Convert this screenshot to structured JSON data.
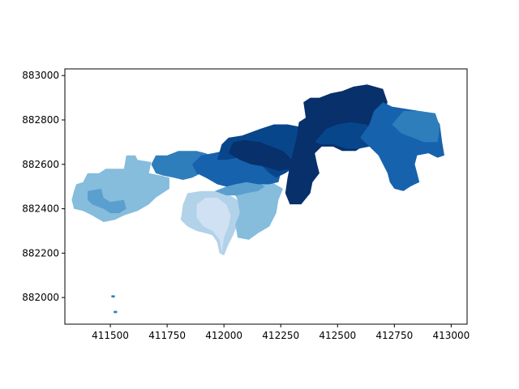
{
  "colors": {
    "background": "#ffffff",
    "frame": "#000000",
    "tick_label": "#000000",
    "choropleth_palette": "Blues",
    "shades": {
      "darkest": "#08306b",
      "dark": "#08468c",
      "dark_mid": "#1762ad",
      "mid": "#2f7ebc",
      "mid_light": "#5b9fcf",
      "light": "#86bcdc",
      "lighter": "#b1d2e8",
      "lightest": "#cfe1f2"
    }
  },
  "chart_data": {
    "type": "choropleth_map",
    "title": "",
    "xlabel": "",
    "ylabel": "",
    "xlim": [
      411300,
      413070
    ],
    "ylim": [
      881880,
      883030
    ],
    "grid": false,
    "legend": "none",
    "xticks": {
      "values": [
        411500,
        411750,
        412000,
        412250,
        412500,
        412750,
        413000
      ],
      "labels": [
        "411500",
        "411750",
        "412000",
        "412250",
        "412500",
        "412750",
        "413000"
      ]
    },
    "yticks": {
      "values": [
        882000,
        882200,
        882400,
        882600,
        882800,
        883000
      ],
      "labels": [
        "882000",
        "882200",
        "882400",
        "882600",
        "882800",
        "883000"
      ]
    },
    "regions": [
      {
        "name": "west_light_blue",
        "shade": "light",
        "polygon": [
          [
            411340,
            882480
          ],
          [
            411350,
            882510
          ],
          [
            411380,
            882520
          ],
          [
            411400,
            882560
          ],
          [
            411450,
            882560
          ],
          [
            411480,
            882580
          ],
          [
            411560,
            882580
          ],
          [
            411570,
            882640
          ],
          [
            411610,
            882640
          ],
          [
            411620,
            882620
          ],
          [
            411680,
            882610
          ],
          [
            411670,
            882560
          ],
          [
            411720,
            882550
          ],
          [
            411760,
            882540
          ],
          [
            411760,
            882490
          ],
          [
            411700,
            882450
          ],
          [
            411670,
            882420
          ],
          [
            411620,
            882390
          ],
          [
            411560,
            882370
          ],
          [
            411520,
            882350
          ],
          [
            411470,
            882340
          ],
          [
            411420,
            882370
          ],
          [
            411380,
            882390
          ],
          [
            411340,
            882400
          ],
          [
            411330,
            882440
          ]
        ]
      },
      {
        "name": "west_mid_light_patch",
        "shade": "mid_light",
        "polygon": [
          [
            411400,
            882480
          ],
          [
            411460,
            882490
          ],
          [
            411470,
            882450
          ],
          [
            411500,
            882430
          ],
          [
            411560,
            882440
          ],
          [
            411570,
            882400
          ],
          [
            411540,
            882380
          ],
          [
            411500,
            882380
          ],
          [
            411470,
            882400
          ],
          [
            411420,
            882420
          ],
          [
            411400,
            882440
          ]
        ]
      },
      {
        "name": "central_mid_band",
        "shade": "mid",
        "polygon": [
          [
            411680,
            882600
          ],
          [
            411700,
            882640
          ],
          [
            411750,
            882640
          ],
          [
            411800,
            882660
          ],
          [
            411880,
            882660
          ],
          [
            411920,
            882650
          ],
          [
            411960,
            882630
          ],
          [
            411980,
            882590
          ],
          [
            411940,
            882570
          ],
          [
            411900,
            882560
          ],
          [
            411860,
            882540
          ],
          [
            411820,
            882530
          ],
          [
            411780,
            882540
          ],
          [
            411730,
            882550
          ],
          [
            411700,
            882560
          ]
        ]
      },
      {
        "name": "south_lighter_lobe",
        "shade": "lighter",
        "polygon": [
          [
            411820,
            882420
          ],
          [
            411840,
            882470
          ],
          [
            411900,
            882480
          ],
          [
            411960,
            882480
          ],
          [
            412010,
            882470
          ],
          [
            412060,
            882440
          ],
          [
            412080,
            882390
          ],
          [
            412060,
            882330
          ],
          [
            412040,
            882280
          ],
          [
            412020,
            882240
          ],
          [
            412000,
            882190
          ],
          [
            411980,
            882200
          ],
          [
            411970,
            882250
          ],
          [
            411950,
            882280
          ],
          [
            411920,
            882290
          ],
          [
            411880,
            882300
          ],
          [
            411840,
            882320
          ],
          [
            411810,
            882350
          ]
        ]
      },
      {
        "name": "south_lightest_core",
        "shade": "lightest",
        "polygon": [
          [
            411880,
            882420
          ],
          [
            411920,
            882450
          ],
          [
            411970,
            882450
          ],
          [
            412010,
            882420
          ],
          [
            412030,
            882370
          ],
          [
            412020,
            882320
          ],
          [
            412000,
            882270
          ],
          [
            411990,
            882200
          ],
          [
            411980,
            882260
          ],
          [
            411950,
            882300
          ],
          [
            411910,
            882320
          ],
          [
            411880,
            882360
          ]
        ]
      },
      {
        "name": "south_east_light",
        "shade": "light",
        "polygon": [
          [
            412040,
            882480
          ],
          [
            412090,
            882500
          ],
          [
            412150,
            882510
          ],
          [
            412210,
            882520
          ],
          [
            412260,
            882490
          ],
          [
            412240,
            882440
          ],
          [
            412230,
            882380
          ],
          [
            412200,
            882320
          ],
          [
            412150,
            882290
          ],
          [
            412110,
            882260
          ],
          [
            412060,
            882270
          ],
          [
            412050,
            882330
          ],
          [
            412070,
            882380
          ],
          [
            412060,
            882440
          ]
        ]
      },
      {
        "name": "central_mid_light",
        "shade": "mid_light",
        "polygon": [
          [
            411960,
            882480
          ],
          [
            412010,
            882500
          ],
          [
            412050,
            882520
          ],
          [
            412100,
            882530
          ],
          [
            412150,
            882520
          ],
          [
            412180,
            882500
          ],
          [
            412150,
            882480
          ],
          [
            412100,
            882470
          ],
          [
            412060,
            882460
          ],
          [
            412010,
            882460
          ]
        ]
      },
      {
        "name": "central_dark_mid",
        "shade": "dark_mid",
        "polygon": [
          [
            411860,
            882600
          ],
          [
            411900,
            882640
          ],
          [
            411950,
            882650
          ],
          [
            412000,
            882660
          ],
          [
            412060,
            882670
          ],
          [
            412120,
            882660
          ],
          [
            412180,
            882640
          ],
          [
            412220,
            882600
          ],
          [
            412250,
            882560
          ],
          [
            412240,
            882520
          ],
          [
            412200,
            882510
          ],
          [
            412150,
            882510
          ],
          [
            412100,
            882520
          ],
          [
            412050,
            882510
          ],
          [
            412010,
            882500
          ],
          [
            411970,
            882510
          ],
          [
            411920,
            882540
          ],
          [
            411880,
            882560
          ]
        ]
      },
      {
        "name": "north_central_dark",
        "shade": "dark",
        "polygon": [
          [
            411970,
            882620
          ],
          [
            411990,
            882690
          ],
          [
            412020,
            882720
          ],
          [
            412080,
            882730
          ],
          [
            412160,
            882760
          ],
          [
            412220,
            882780
          ],
          [
            412280,
            882780
          ],
          [
            412330,
            882770
          ],
          [
            412360,
            882730
          ],
          [
            412350,
            882680
          ],
          [
            412340,
            882620
          ],
          [
            412300,
            882580
          ],
          [
            412270,
            882560
          ],
          [
            412230,
            882540
          ],
          [
            412200,
            882560
          ],
          [
            412160,
            882600
          ],
          [
            412120,
            882620
          ],
          [
            412060,
            882630
          ],
          [
            412010,
            882620
          ]
        ]
      },
      {
        "name": "north_core_darkest",
        "shade": "darkest",
        "polygon": [
          [
            412020,
            882650
          ],
          [
            412040,
            882700
          ],
          [
            412090,
            882710
          ],
          [
            412160,
            882700
          ],
          [
            412210,
            882680
          ],
          [
            412260,
            882660
          ],
          [
            412300,
            882620
          ],
          [
            412290,
            882580
          ],
          [
            412240,
            882570
          ],
          [
            412180,
            882590
          ],
          [
            412120,
            882600
          ],
          [
            412070,
            882620
          ]
        ]
      },
      {
        "name": "east_main_darkest",
        "shade": "darkest",
        "polygon": [
          [
            412300,
            882640
          ],
          [
            412320,
            882720
          ],
          [
            412330,
            882790
          ],
          [
            412360,
            882810
          ],
          [
            412350,
            882880
          ],
          [
            412380,
            882900
          ],
          [
            412420,
            882900
          ],
          [
            412470,
            882920
          ],
          [
            412520,
            882930
          ],
          [
            412570,
            882950
          ],
          [
            412630,
            882960
          ],
          [
            412700,
            882940
          ],
          [
            412720,
            882880
          ],
          [
            412700,
            882820
          ],
          [
            412680,
            882760
          ],
          [
            412640,
            882700
          ],
          [
            412580,
            882660
          ],
          [
            412520,
            882660
          ],
          [
            412480,
            882680
          ],
          [
            412430,
            882680
          ],
          [
            412400,
            882650
          ],
          [
            412410,
            882600
          ],
          [
            412420,
            882560
          ],
          [
            412390,
            882520
          ],
          [
            412380,
            882470
          ],
          [
            412340,
            882420
          ],
          [
            412290,
            882420
          ],
          [
            412270,
            882470
          ],
          [
            412280,
            882540
          ]
        ]
      },
      {
        "name": "east_main_dark",
        "shade": "dark",
        "polygon": [
          [
            412400,
            882700
          ],
          [
            412450,
            882760
          ],
          [
            412500,
            882780
          ],
          [
            412560,
            882790
          ],
          [
            412620,
            882780
          ],
          [
            412670,
            882760
          ],
          [
            412680,
            882700
          ],
          [
            412640,
            882680
          ],
          [
            412590,
            882670
          ],
          [
            412540,
            882670
          ],
          [
            412480,
            882690
          ],
          [
            412430,
            882690
          ]
        ]
      },
      {
        "name": "far_east_mid",
        "shade": "dark_mid",
        "polygon": [
          [
            412600,
            882720
          ],
          [
            412640,
            882780
          ],
          [
            412660,
            882840
          ],
          [
            412700,
            882880
          ],
          [
            412740,
            882860
          ],
          [
            412800,
            882850
          ],
          [
            412860,
            882840
          ],
          [
            412920,
            882830
          ],
          [
            412950,
            882780
          ],
          [
            412960,
            882700
          ],
          [
            412970,
            882640
          ],
          [
            412940,
            882630
          ],
          [
            412900,
            882650
          ],
          [
            412850,
            882640
          ],
          [
            412840,
            882600
          ],
          [
            412850,
            882560
          ],
          [
            412860,
            882520
          ],
          [
            412820,
            882500
          ],
          [
            412790,
            882480
          ],
          [
            412750,
            882490
          ],
          [
            412730,
            882520
          ],
          [
            412720,
            882560
          ],
          [
            412700,
            882600
          ],
          [
            412680,
            882640
          ],
          [
            412640,
            882680
          ]
        ]
      },
      {
        "name": "far_east_light_upper",
        "shade": "mid",
        "polygon": [
          [
            412740,
            882780
          ],
          [
            412790,
            882840
          ],
          [
            412860,
            882840
          ],
          [
            412930,
            882830
          ],
          [
            412950,
            882770
          ],
          [
            412940,
            882700
          ],
          [
            412880,
            882700
          ],
          [
            412830,
            882720
          ],
          [
            412780,
            882740
          ]
        ]
      },
      {
        "name": "outlier_dot_upper",
        "shade": "mid",
        "polygon": [
          [
            411505,
            882010
          ],
          [
            411520,
            882010
          ],
          [
            411520,
            882000
          ],
          [
            411505,
            882000
          ]
        ]
      },
      {
        "name": "outlier_dot_lower",
        "shade": "mid",
        "polygon": [
          [
            411515,
            881940
          ],
          [
            411530,
            881940
          ],
          [
            411530,
            881930
          ],
          [
            411515,
            881930
          ]
        ]
      }
    ]
  }
}
